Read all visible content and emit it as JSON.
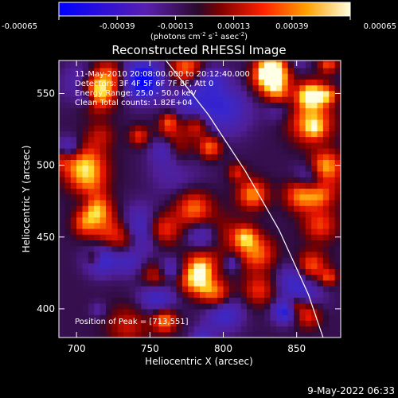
{
  "colorbar": {
    "ticks": [
      "-0.00065",
      "-0.00039",
      "-0.00013",
      "0.00013",
      "0.00039",
      "0.00065"
    ],
    "unit_main": "(photons cm",
    "unit_exp1": "-2",
    "unit_mid": " s",
    "unit_exp2": "-1",
    "unit_mid2": " asec",
    "unit_exp3": "-2",
    "unit_end": ")"
  },
  "annotations": {
    "time_range": "11-May-2010 20:08:00.000 to 20:12:40.000",
    "detectors": "Detectors: 3F 4F 5F 6F 7F 8F, Att 0",
    "energy": "Energy Range: 25.0 - 50.0 keV",
    "clean": "Clean    Total counts: 1.82E+04",
    "peak": "Position of Peak = [713,551]"
  },
  "footer": {
    "date": "9-May-2022 06:33"
  },
  "chart_data": {
    "type": "heatmap",
    "title": "Reconstructed RHESSI Image",
    "xlabel": "Heliocentric X (arcsec)",
    "ylabel": "Heliocentric Y (arcsec)",
    "xlim": [
      688,
      880
    ],
    "ylim": [
      380,
      573
    ],
    "xticks": [
      700,
      750,
      800,
      850
    ],
    "yticks": [
      400,
      450,
      500,
      550
    ],
    "colorbar_range": [
      -0.00065,
      0.00065
    ],
    "peak_position": [
      713,
      551
    ],
    "limb_curve": {
      "points": [
        [
          761,
          573
        ],
        [
          790,
          535
        ],
        [
          815,
          496
        ],
        [
          838,
          455
        ],
        [
          858,
          410
        ],
        [
          868,
          380
        ]
      ]
    },
    "colors": {
      "background": "#000000",
      "limb": "#ffffff"
    }
  }
}
